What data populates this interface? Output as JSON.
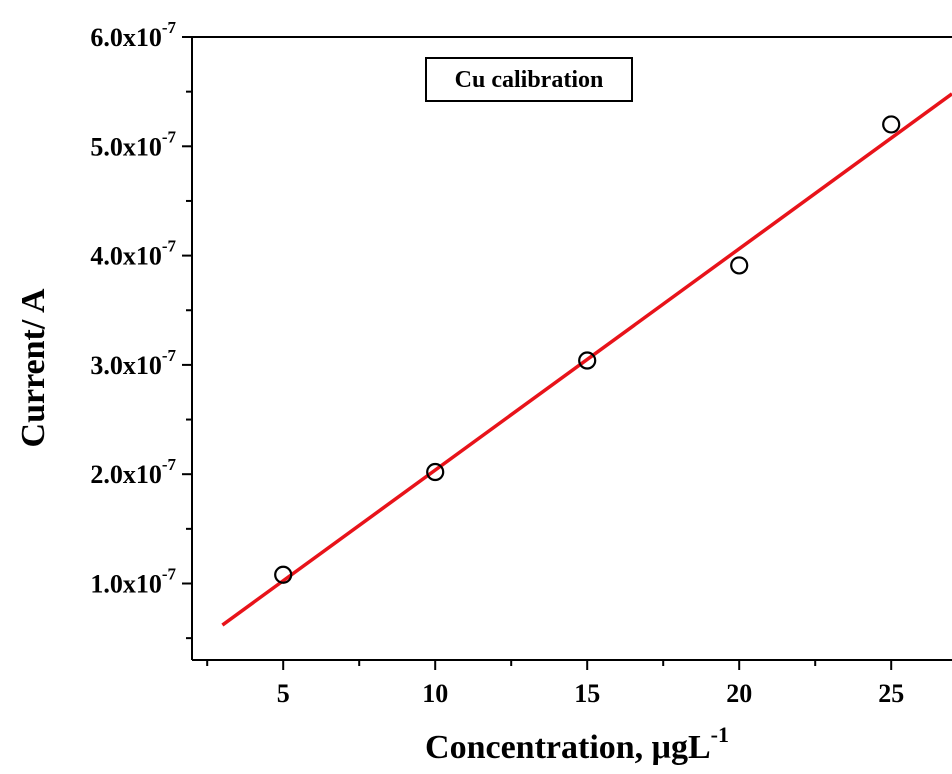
{
  "chart_data": {
    "type": "scatter",
    "title": "",
    "xlabel": "Concentration, μgL",
    "xlabel_superscript": "-1",
    "ylabel": "Current/ A",
    "xlim": [
      2,
      27
    ],
    "ylim": [
      3e-08,
      6e-07
    ],
    "x_ticks": [
      5,
      10,
      15,
      20,
      25
    ],
    "y_ticks": [
      {
        "value": 1e-07,
        "mantissa": "1.0x10",
        "exponent": "-7"
      },
      {
        "value": 2e-07,
        "mantissa": "2.0x10",
        "exponent": "-7"
      },
      {
        "value": 3e-07,
        "mantissa": "3.0x10",
        "exponent": "-7"
      },
      {
        "value": 4e-07,
        "mantissa": "4.0x10",
        "exponent": "-7"
      },
      {
        "value": 5e-07,
        "mantissa": "5.0x10",
        "exponent": "-7"
      },
      {
        "value": 6e-07,
        "mantissa": "6.0x10",
        "exponent": "-7"
      }
    ],
    "series": [
      {
        "name": "Cu calibration",
        "marker": "open-circle",
        "color": "#000000",
        "x": [
          5,
          10,
          15,
          20,
          25
        ],
        "y": [
          1.08e-07,
          2.02e-07,
          3.04e-07,
          3.91e-07,
          5.2e-07
        ]
      }
    ],
    "fit_line": {
      "color": "#e8131a",
      "x": [
        3,
        27
      ],
      "y": [
        6.2e-08,
        5.48e-07
      ]
    },
    "legend": {
      "text": "Cu calibration",
      "placement": "top-center"
    },
    "grid": false
  }
}
